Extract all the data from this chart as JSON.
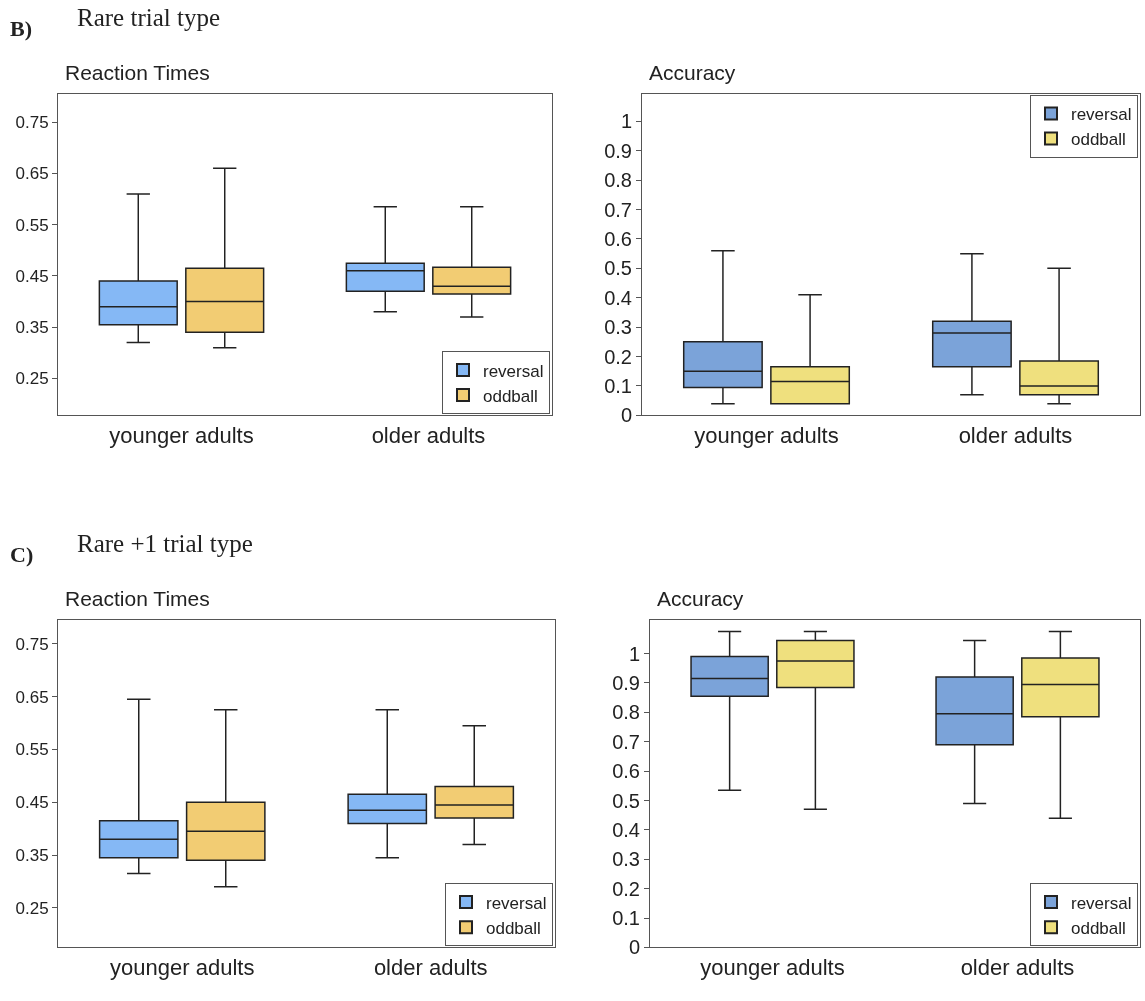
{
  "chart_data": [
    {
      "type": "box",
      "title": "Reaction Times",
      "annotations": [
        "B)",
        "Rare trial type"
      ],
      "categories": [
        "younger adults",
        "older adults"
      ],
      "ylim": [
        0.178,
        0.805
      ],
      "yticks": [
        0.25,
        0.35,
        0.45,
        0.55,
        0.65,
        0.75
      ],
      "legend": "bottom right",
      "series": [
        {
          "name": "reversal",
          "color": "#85b8f5",
          "boxes": [
            {
              "low": 0.32,
              "q1": 0.355,
              "median": 0.39,
              "q3": 0.44,
              "high": 0.61
            },
            {
              "low": 0.38,
              "q1": 0.42,
              "median": 0.46,
              "q3": 0.475,
              "high": 0.585
            }
          ]
        },
        {
          "name": "oddball",
          "color": "#f2cc73",
          "boxes": [
            {
              "low": 0.31,
              "q1": 0.34,
              "median": 0.4,
              "q3": 0.465,
              "high": 0.66
            },
            {
              "low": 0.37,
              "q1": 0.415,
              "median": 0.43,
              "q3": 0.467,
              "high": 0.585
            }
          ]
        }
      ]
    },
    {
      "type": "box",
      "title": "Accuracy",
      "categories": [
        "younger adults",
        "older adults"
      ],
      "ylim": [
        0,
        1.093
      ],
      "yticks": [
        0,
        0.1,
        0.2,
        0.3,
        0.4,
        0.5,
        0.6,
        0.7,
        0.8,
        0.9,
        1
      ],
      "legend": "top right",
      "series": [
        {
          "name": "reversal",
          "color": "#7ba3d9",
          "boxes": [
            {
              "low": 0.04,
              "q1": 0.095,
              "median": 0.15,
              "q3": 0.25,
              "high": 0.56
            },
            {
              "low": 0.07,
              "q1": 0.165,
              "median": 0.28,
              "q3": 0.32,
              "high": 0.55
            }
          ]
        },
        {
          "name": "oddball",
          "color": "#efe07e",
          "boxes": [
            {
              "low": 0.04,
              "q1": 0.04,
              "median": 0.115,
              "q3": 0.165,
              "high": 0.41
            },
            {
              "low": 0.04,
              "q1": 0.07,
              "median": 0.1,
              "q3": 0.185,
              "high": 0.5
            }
          ]
        }
      ]
    },
    {
      "type": "box",
      "title": "Reaction Times",
      "annotations": [
        "C)",
        "Rare +1 trial type"
      ],
      "categories": [
        "younger adults",
        "older adults"
      ],
      "ylim": [
        0.175,
        0.795
      ],
      "yticks": [
        0.25,
        0.35,
        0.45,
        0.55,
        0.65,
        0.75
      ],
      "legend": "bottom right",
      "series": [
        {
          "name": "reversal",
          "color": "#85b8f5",
          "boxes": [
            {
              "low": 0.315,
              "q1": 0.345,
              "median": 0.38,
              "q3": 0.415,
              "high": 0.645
            },
            {
              "low": 0.345,
              "q1": 0.41,
              "median": 0.435,
              "q3": 0.465,
              "high": 0.625
            }
          ]
        },
        {
          "name": "oddball",
          "color": "#f2cc73",
          "boxes": [
            {
              "low": 0.29,
              "q1": 0.34,
              "median": 0.395,
              "q3": 0.45,
              "high": 0.625
            },
            {
              "low": 0.37,
              "q1": 0.42,
              "median": 0.445,
              "q3": 0.48,
              "high": 0.595
            }
          ]
        }
      ]
    },
    {
      "type": "box",
      "title": "Accuracy",
      "categories": [
        "younger adults",
        "older adults"
      ],
      "ylim": [
        0,
        1.114
      ],
      "yticks": [
        0,
        0.1,
        0.2,
        0.3,
        0.4,
        0.5,
        0.6,
        0.7,
        0.8,
        0.9,
        1
      ],
      "legend": "bottom right",
      "series": [
        {
          "name": "reversal",
          "color": "#7ba3d9",
          "boxes": [
            {
              "low": 0.535,
              "q1": 0.855,
              "median": 0.915,
              "q3": 0.99,
              "high": 1.075
            },
            {
              "low": 0.49,
              "q1": 0.69,
              "median": 0.795,
              "q3": 0.92,
              "high": 1.045
            }
          ]
        },
        {
          "name": "oddball",
          "color": "#efe07e",
          "boxes": [
            {
              "low": 0.47,
              "q1": 0.885,
              "median": 0.975,
              "q3": 1.045,
              "high": 1.075
            },
            {
              "low": 0.44,
              "q1": 0.785,
              "median": 0.895,
              "q3": 0.985,
              "high": 1.075
            }
          ]
        }
      ]
    }
  ]
}
